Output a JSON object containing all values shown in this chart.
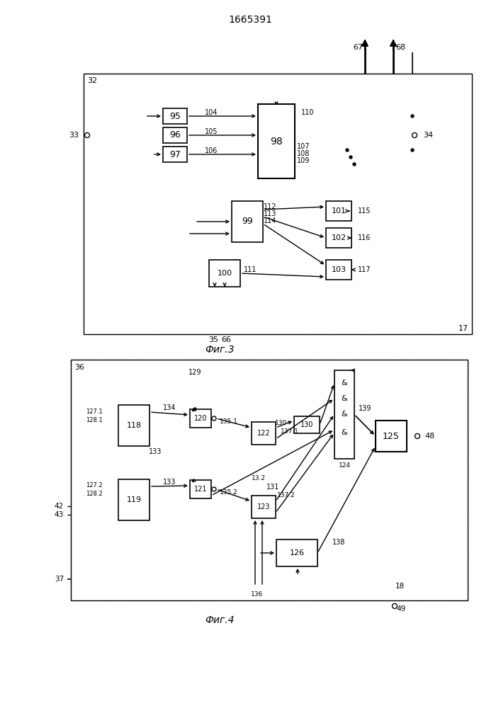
{
  "title": "1665391",
  "fig3_label": "Фиг.3",
  "fig4_label": "Фиг.4"
}
